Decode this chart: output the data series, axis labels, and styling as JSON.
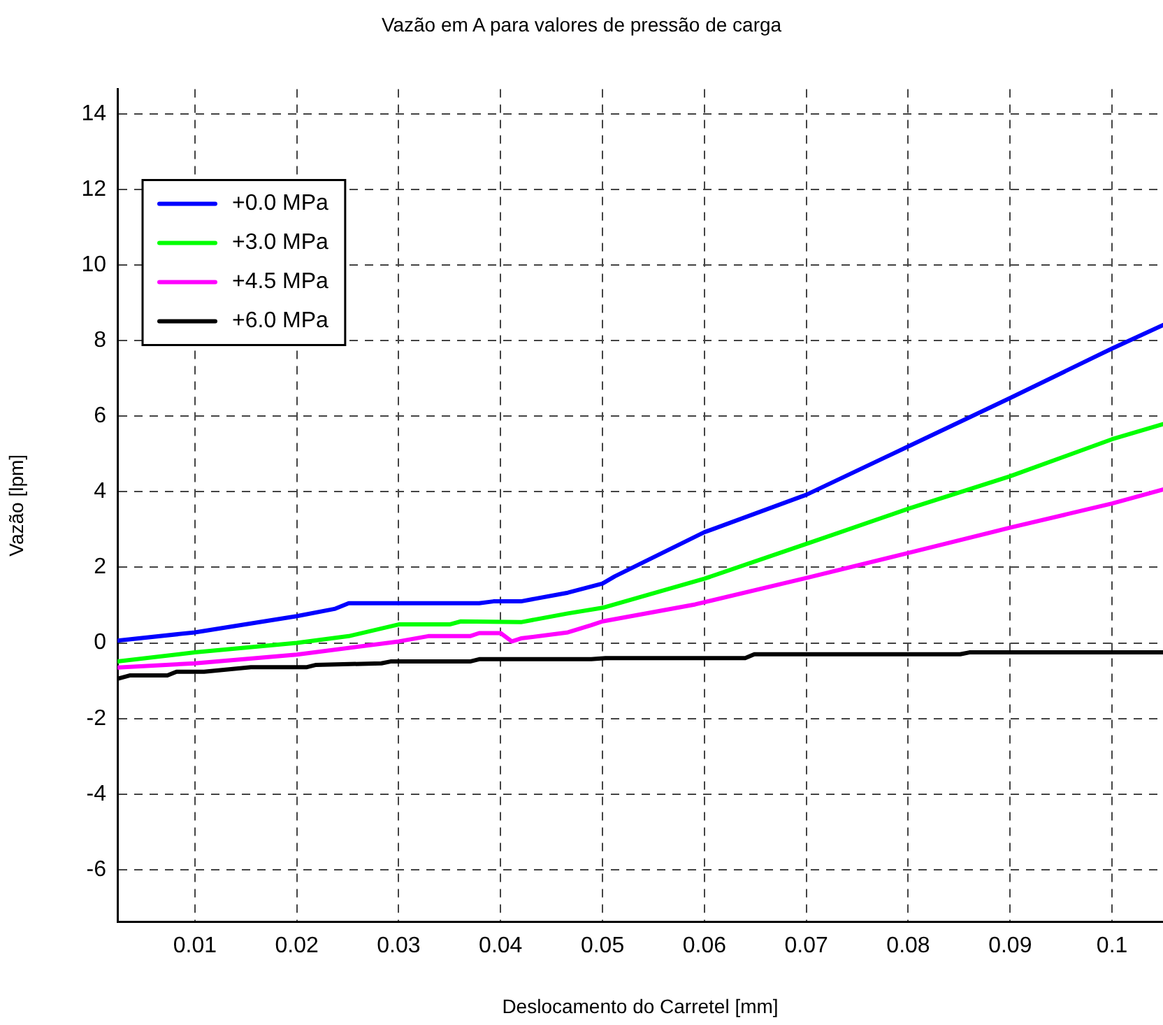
{
  "chart_data": {
    "type": "line",
    "title": "Vazão em A para valores de pressão de carga",
    "xlabel": "Deslocamento do Carretel [mm]",
    "ylabel": "Vazão [lpm]",
    "xlim": [
      0.0024,
      0.105
    ],
    "xticks": [
      0.01,
      0.02,
      0.03,
      0.04,
      0.05,
      0.06,
      0.07,
      0.08,
      0.09,
      0.1
    ],
    "ylim": [
      -7.37,
      14.65
    ],
    "yticks": [
      -6,
      -4,
      -2,
      0,
      2,
      4,
      6,
      8,
      10,
      12,
      14
    ],
    "grid": true,
    "legend": "top left",
    "marker": "none",
    "line_style": "solid",
    "series": [
      {
        "name": "+0.0 MPa",
        "color": "#0000ff",
        "x": [
          0.0024,
          0.01,
          0.02,
          0.0237,
          0.0251,
          0.0379,
          0.0393,
          0.042,
          0.0466,
          0.05,
          0.0512,
          0.06,
          0.07,
          0.08,
          0.09,
          0.1,
          0.105
        ],
        "values": [
          0.06,
          0.28,
          0.71,
          0.9,
          1.05,
          1.05,
          1.1,
          1.1,
          1.33,
          1.57,
          1.76,
          2.93,
          3.92,
          5.2,
          6.48,
          7.79,
          8.41
        ]
      },
      {
        "name": "+3.0 MPa",
        "color": "#00ff00",
        "x": [
          0.0024,
          0.01,
          0.02,
          0.0251,
          0.03,
          0.035,
          0.0361,
          0.042,
          0.0466,
          0.05,
          0.06,
          0.07,
          0.08,
          0.09,
          0.1,
          0.105
        ],
        "values": [
          -0.49,
          -0.25,
          0.0,
          0.18,
          0.49,
          0.49,
          0.57,
          0.55,
          0.78,
          0.93,
          1.7,
          2.62,
          3.55,
          4.41,
          5.39,
          5.79
        ]
      },
      {
        "name": "+4.5 MPa",
        "color": "#ff00ff",
        "x": [
          0.0024,
          0.01,
          0.02,
          0.03,
          0.0329,
          0.037,
          0.0379,
          0.04,
          0.0411,
          0.042,
          0.0466,
          0.0489,
          0.05,
          0.0591,
          0.07,
          0.08,
          0.09,
          0.1,
          0.105
        ],
        "values": [
          -0.65,
          -0.54,
          -0.31,
          0.04,
          0.18,
          0.18,
          0.26,
          0.26,
          0.04,
          0.12,
          0.28,
          0.47,
          0.57,
          1.02,
          1.72,
          2.38,
          3.05,
          3.69,
          4.06
        ]
      },
      {
        "name": "+6.0 MPa",
        "color": "#000000",
        "x": [
          0.0024,
          0.0036,
          0.0073,
          0.0082,
          0.0109,
          0.0155,
          0.021,
          0.0219,
          0.0283,
          0.0292,
          0.037,
          0.0379,
          0.0489,
          0.0503,
          0.064,
          0.0649,
          0.0851,
          0.086,
          0.105
        ],
        "values": [
          -0.95,
          -0.86,
          -0.86,
          -0.76,
          -0.76,
          -0.64,
          -0.64,
          -0.58,
          -0.54,
          -0.49,
          -0.49,
          -0.43,
          -0.43,
          -0.4,
          -0.4,
          -0.3,
          -0.3,
          -0.25,
          -0.25
        ]
      }
    ]
  }
}
